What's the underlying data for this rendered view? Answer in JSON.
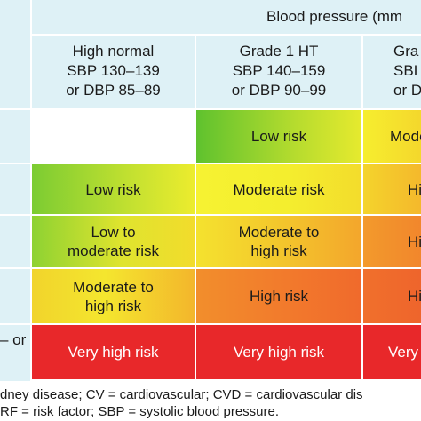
{
  "header": {
    "group_title": "Blood pressure (mm",
    "columns": [
      {
        "label": "High normal\nSBP 130–139\nor DBP 85–89"
      },
      {
        "label": "Grade 1 HT\nSBP 140–159\nor DBP 90–99"
      },
      {
        "label": "Gra\nSBI\nor DI"
      }
    ]
  },
  "rows": [
    {
      "row_label": "",
      "cells": [
        "",
        "Low risk",
        "Mode"
      ]
    },
    {
      "row_label": "",
      "cells": [
        "Low risk",
        "Moderate risk",
        "Hi"
      ]
    },
    {
      "row_label": "",
      "cells": [
        "Low to\nmoderate risk",
        "Moderate to\nhigh risk",
        "Hi"
      ]
    },
    {
      "row_label": "",
      "cells": [
        "Moderate to\nhigh risk",
        "High risk",
        "Hi"
      ]
    },
    {
      "row_label": "– or",
      "cells": [
        "Very high risk",
        "Very high risk",
        "Very"
      ]
    }
  ],
  "footnotes": {
    "line1": "dney disease; CV = cardiovascular; CVD = cardiovascular dis",
    "line2": "RF = risk factor; SBP = systolic blood pressure."
  },
  "colors": {
    "header_bg": "#def1f6",
    "low": "#6cc832",
    "moderate": "#f4f02e",
    "high": "#f2742c",
    "very_high": "#e8282a"
  }
}
